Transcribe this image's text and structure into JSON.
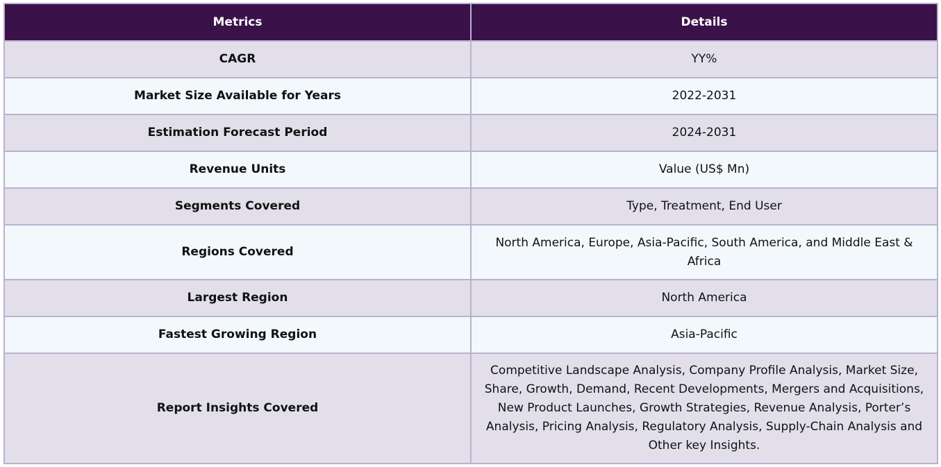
{
  "table": {
    "headers": [
      "Metrics",
      "Details"
    ],
    "rows": [
      {
        "metric": "CAGR",
        "details": "YY%"
      },
      {
        "metric": "Market Size Available for Years",
        "details": "2022-2031"
      },
      {
        "metric": "Estimation Forecast Period",
        "details": "2024-2031"
      },
      {
        "metric": "Revenue Units",
        "details": "Value (US$ Mn)"
      },
      {
        "metric": "Segments Covered",
        "details": "Type, Treatment, End User"
      },
      {
        "metric": "Regions Covered",
        "details": "North America, Europe, Asia-Pacific, South America, and Middle East & Africa"
      },
      {
        "metric": "Largest Region",
        "details": "North America"
      },
      {
        "metric": "Fastest Growing Region",
        "details": "Asia-Pacific"
      },
      {
        "metric": "Report Insights Covered",
        "details": "Competitive Landscape Analysis, Company Profile Analysis, Market Size, Share, Growth, Demand, Recent Developments, Mergers and Acquisitions, New Product Launches, Growth Strategies, Revenue Analysis, Porter’s Analysis, Pricing Analysis, Regulatory Analysis, Supply-Chain Analysis and Other key Insights."
      }
    ]
  },
  "colors": {
    "header_bg": "#3a1149",
    "row_odd_bg": "#e2dfeb",
    "row_even_bg": "#f2f8fc",
    "border": "#b9b2cf"
  }
}
